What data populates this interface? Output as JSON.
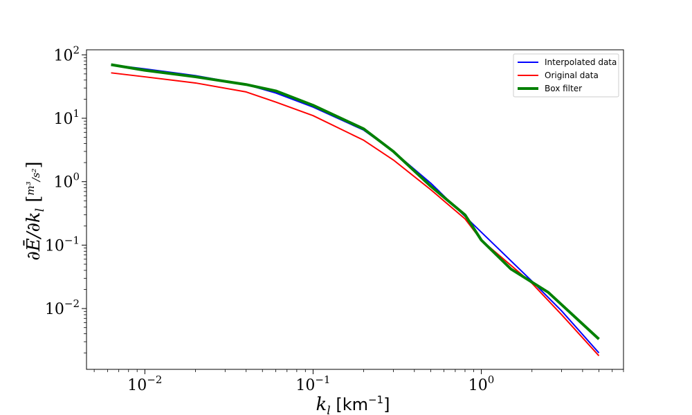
{
  "chart_data": {
    "type": "line",
    "title": "",
    "xlabel": "k_l [km^-1]",
    "ylabel": "∂Ē/∂k_l [m^3/s^2]",
    "xscale": "log",
    "yscale": "log",
    "xlim": [
      0.0045,
      7.0
    ],
    "ylim": [
      0.0011,
      120
    ],
    "x_ticks": [
      {
        "value": 0.01,
        "base": "10",
        "exp": "−2"
      },
      {
        "value": 0.1,
        "base": "10",
        "exp": "−1"
      },
      {
        "value": 1,
        "base": "10",
        "exp": "0"
      }
    ],
    "y_ticks": [
      {
        "value": 100,
        "base": "10",
        "exp": "2"
      },
      {
        "value": 10,
        "base": "10",
        "exp": "1"
      },
      {
        "value": 1,
        "base": "10",
        "exp": "0"
      },
      {
        "value": 0.1,
        "base": "10",
        "exp": "−1"
      },
      {
        "value": 0.01,
        "base": "10",
        "exp": "−2"
      }
    ],
    "grid": false,
    "legend_position": "top-right",
    "series": [
      {
        "name": "Interpolated data",
        "color": "#0000ff",
        "width": 2,
        "points": [
          [
            0.0063,
            70
          ],
          [
            0.01,
            60
          ],
          [
            0.02,
            47
          ],
          [
            0.04,
            34
          ],
          [
            0.06,
            25
          ],
          [
            0.1,
            15
          ],
          [
            0.2,
            6.5
          ],
          [
            0.3,
            3.0
          ],
          [
            0.5,
            0.95
          ],
          [
            1.0,
            0.16
          ],
          [
            2.0,
            0.027
          ],
          [
            3.0,
            0.0092
          ],
          [
            5.0,
            0.002
          ]
        ]
      },
      {
        "name": "Original data",
        "color": "#ff0000",
        "width": 2,
        "points": [
          [
            0.0063,
            52
          ],
          [
            0.01,
            45
          ],
          [
            0.02,
            36
          ],
          [
            0.04,
            26
          ],
          [
            0.06,
            18
          ],
          [
            0.1,
            11
          ],
          [
            0.2,
            4.5
          ],
          [
            0.3,
            2.2
          ],
          [
            0.5,
            0.75
          ],
          [
            0.8,
            0.26
          ],
          [
            1.0,
            0.12
          ],
          [
            2.0,
            0.025
          ],
          [
            3.0,
            0.008
          ],
          [
            5.0,
            0.0018
          ]
        ]
      },
      {
        "name": "Box filter",
        "color": "#008000",
        "width": 4,
        "points": [
          [
            0.0063,
            70
          ],
          [
            0.01,
            57
          ],
          [
            0.02,
            45
          ],
          [
            0.04,
            34
          ],
          [
            0.06,
            27
          ],
          [
            0.1,
            16
          ],
          [
            0.2,
            6.8
          ],
          [
            0.3,
            3.0
          ],
          [
            0.5,
            0.85
          ],
          [
            0.8,
            0.3
          ],
          [
            1.0,
            0.12
          ],
          [
            1.5,
            0.042
          ],
          [
            2.5,
            0.018
          ],
          [
            5.0,
            0.0033
          ]
        ]
      }
    ]
  }
}
